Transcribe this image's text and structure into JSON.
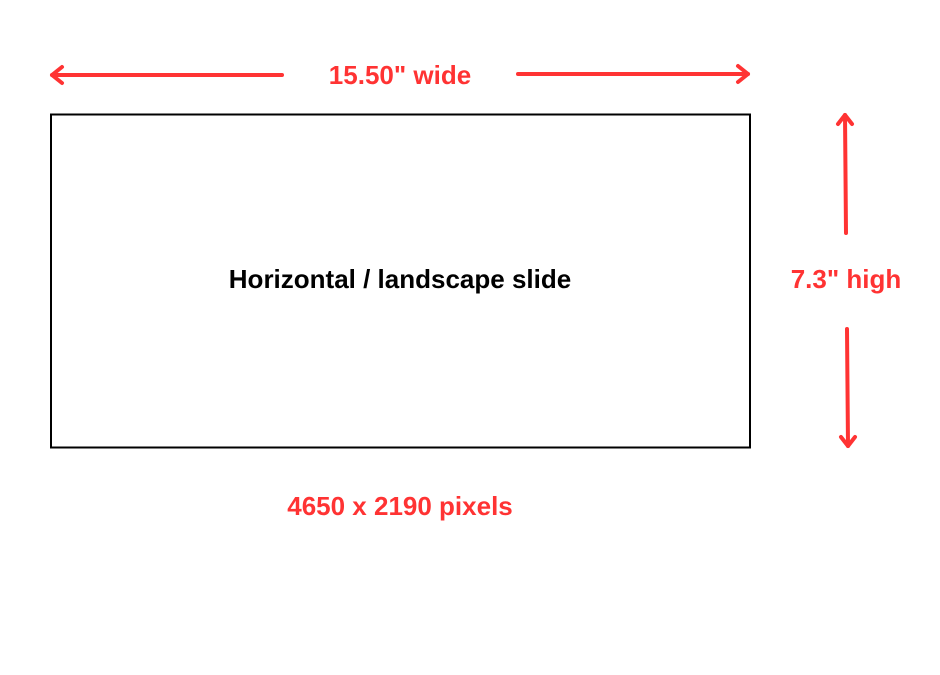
{
  "width_label": "15.50\" wide",
  "height_label": "7.3\" high",
  "slide_label": "Horizontal / landscape slide",
  "pixels_label": "4650 x 2190 pixels",
  "colors": {
    "accent": "#ff3333",
    "outline": "#000000",
    "text": "#000000"
  },
  "icons": {
    "width_arrows": "double-headed-horizontal-arrow",
    "height_arrows": "double-headed-vertical-arrow"
  }
}
